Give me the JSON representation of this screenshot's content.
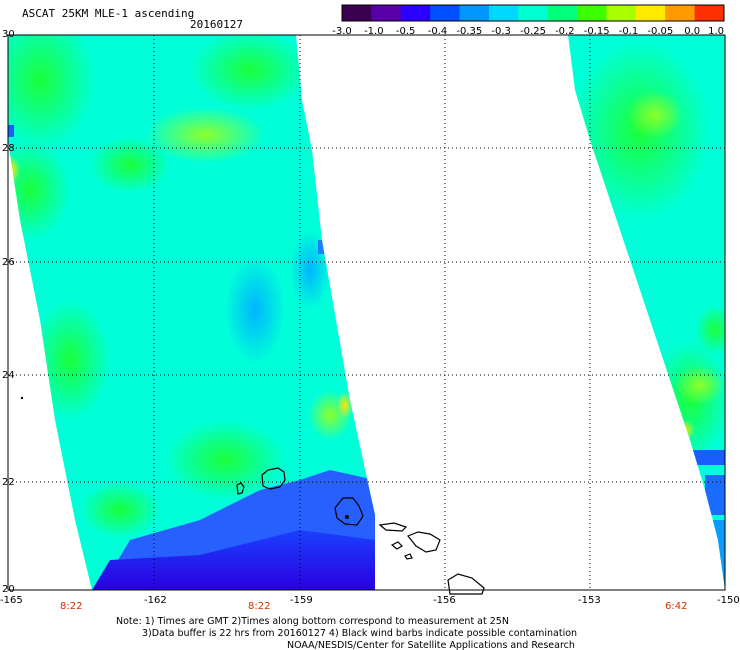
{
  "header": {
    "title": "ASCAT 25KM MLE-1 ascending",
    "date": "20160127"
  },
  "colorbar": {
    "tick_labels": [
      "-3.0",
      "-1.0",
      "-0.5",
      "-0.4",
      "-0.35",
      "-0.3",
      "-0.25",
      "-0.2",
      "-0.15",
      "-0.1",
      "-0.05",
      "0.0",
      "1.0"
    ],
    "colors": [
      "#3a0050",
      "#5a00a8",
      "#2c00ff",
      "#0050ff",
      "#0096ff",
      "#00d8ff",
      "#00ffd0",
      "#00ff7a",
      "#3cff00",
      "#a8ff00",
      "#ffea00",
      "#ff9a00",
      "#ff3000"
    ]
  },
  "map": {
    "lon_labels": [
      "-165",
      "-162",
      "-159",
      "-156",
      "-153",
      "-150"
    ],
    "lat_labels": [
      "30",
      "28",
      "26",
      "24",
      "22",
      "20"
    ],
    "time_labels": [
      "8:22",
      "8:22",
      "6:42"
    ]
  },
  "footer": {
    "note_line1": "Note: 1) Times are GMT 2)Times along bottom correspond to measurement at 25N",
    "note_line2": "3)Data buffer is 22 hrs from 20160127 4) Black wind barbs indicate possible contamination",
    "note_line3": "NOAA/NESDIS/Center for Satellite Applications and Research"
  }
}
